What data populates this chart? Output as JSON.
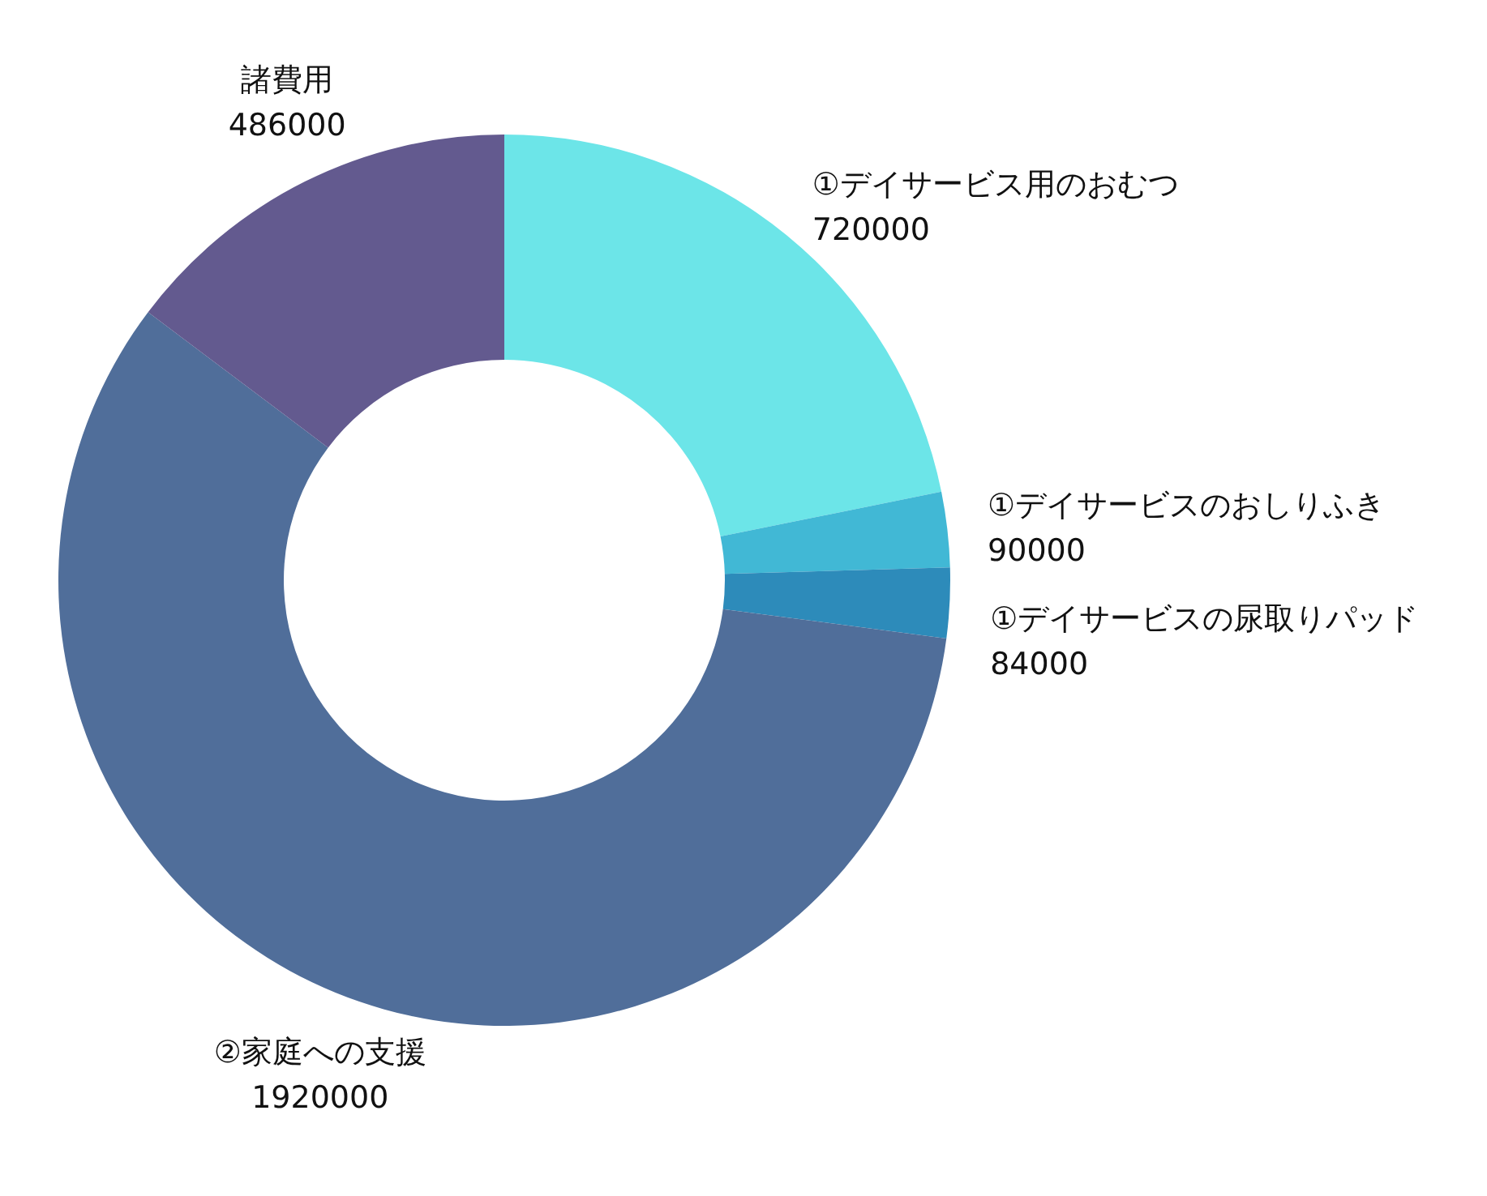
{
  "chart_data": {
    "type": "donut",
    "categories": [
      "①デイサービス用のおむつ",
      "①デイサービスのおしりふき",
      "①デイサービスの尿取りパッド",
      "②家庭への支援",
      "諸費用"
    ],
    "values": [
      720000,
      90000,
      84000,
      1920000,
      486000
    ],
    "colors": [
      "#6ce5e8",
      "#41b8d5",
      "#2d8bba",
      "#506e9a",
      "#635a8f"
    ],
    "data_labels": true
  }
}
